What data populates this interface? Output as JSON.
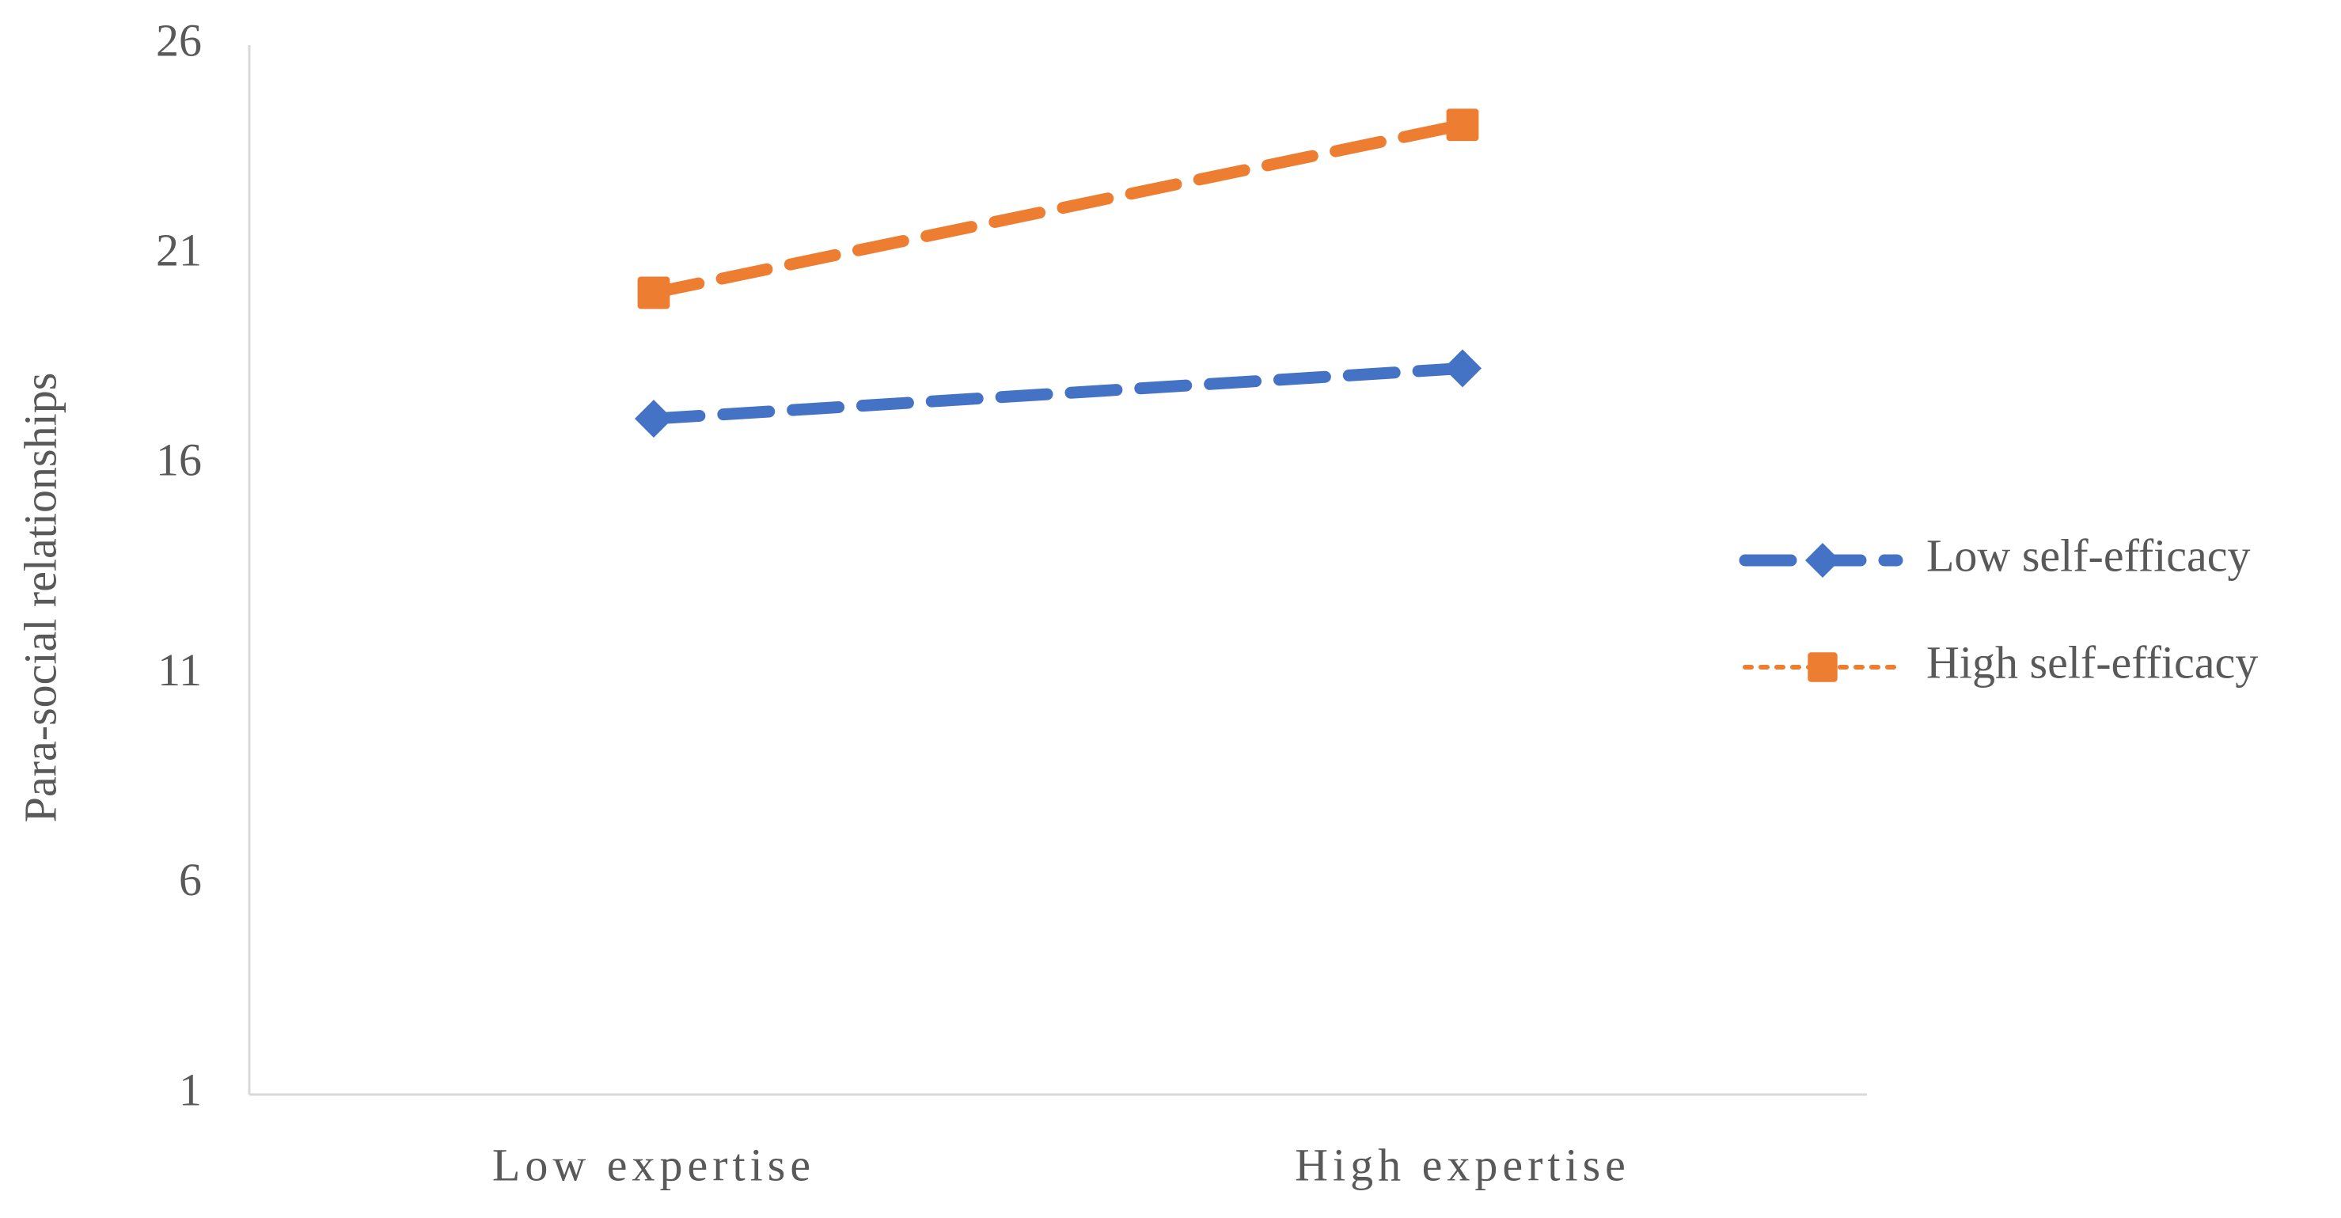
{
  "chart_data": {
    "type": "line",
    "y_label": "Para-social relationships",
    "categories": [
      "Low expertise",
      "High expertise"
    ],
    "series": [
      {
        "name": "Low self-efficacy",
        "color": "#4472c4",
        "marker": "diamond",
        "values": [
          17.1,
          18.3
        ]
      },
      {
        "name": "High self-efficacy",
        "color": "#ed7d31",
        "marker": "square",
        "values": [
          20.1,
          24.1
        ]
      }
    ],
    "ylim": [
      1,
      26
    ],
    "yticks": [
      1,
      6,
      11,
      16,
      21,
      26
    ],
    "grid": false,
    "legend": "right"
  }
}
